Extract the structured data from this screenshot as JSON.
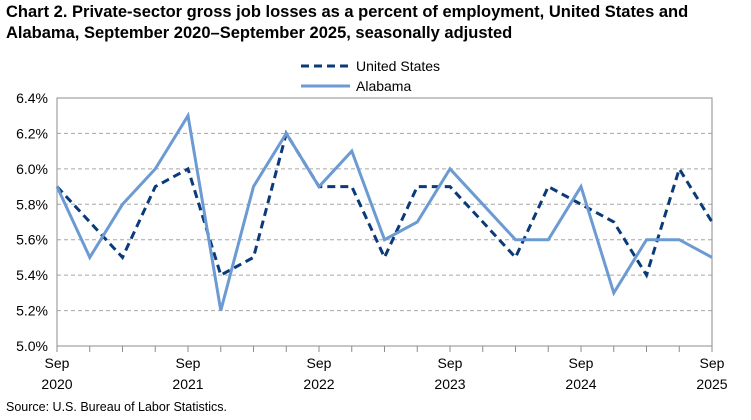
{
  "title": "Chart 2. Private-sector gross job losses as a percent of employment, United States and Alabama, September 2020–September 2025, seasonally adjusted",
  "source": "Source: U.S. Bureau of Labor Statistics.",
  "chart_data": {
    "type": "line",
    "title": "Chart 2. Private-sector gross job losses as a percent of employment, United States and Alabama, September 2020–September 2025, seasonally adjusted",
    "xlabel": "",
    "ylabel": "",
    "ylim": [
      5.0,
      6.4
    ],
    "yticks": [
      "5.0%",
      "5.2%",
      "5.4%",
      "5.6%",
      "5.8%",
      "6.0%",
      "6.2%",
      "6.4%"
    ],
    "x": [
      "Sep 2020",
      "Dec 2020",
      "Mar 2021",
      "Jun 2021",
      "Sep 2021",
      "Dec 2021",
      "Mar 2022",
      "Jun 2022",
      "Sep 2022",
      "Dec 2022",
      "Mar 2023",
      "Jun 2023",
      "Sep 2023",
      "Dec 2023",
      "Mar 2024",
      "Jun 2024",
      "Sep 2024",
      "Dec 2024",
      "Mar 2025",
      "Jun 2025",
      "Sep 2025"
    ],
    "xtick_labels": [
      {
        "index": 0,
        "month": "Sep",
        "year": "2020"
      },
      {
        "index": 4,
        "month": "Sep",
        "year": "2021"
      },
      {
        "index": 8,
        "month": "Sep",
        "year": "2022"
      },
      {
        "index": 12,
        "month": "Sep",
        "year": "2023"
      },
      {
        "index": 16,
        "month": "Sep",
        "year": "2024"
      },
      {
        "index": 20,
        "month": "Sep",
        "year": "2025"
      }
    ],
    "grid": true,
    "legend_position": "top-center",
    "series": [
      {
        "name": "United States",
        "style": "dashed",
        "color": "#0b3a7a",
        "values": [
          5.9,
          5.7,
          5.5,
          5.9,
          6.0,
          5.4,
          5.5,
          6.2,
          5.9,
          5.9,
          5.5,
          5.9,
          5.9,
          5.7,
          5.5,
          5.9,
          5.8,
          5.7,
          5.4,
          6.0,
          5.7
        ]
      },
      {
        "name": "Alabama",
        "style": "solid",
        "color": "#6b9bd2",
        "values": [
          5.9,
          5.5,
          5.8,
          6.0,
          6.3,
          5.2,
          5.9,
          6.2,
          5.9,
          6.1,
          5.6,
          5.7,
          6.0,
          5.8,
          5.6,
          5.6,
          5.9,
          5.3,
          5.6,
          5.6,
          5.5
        ]
      }
    ]
  }
}
